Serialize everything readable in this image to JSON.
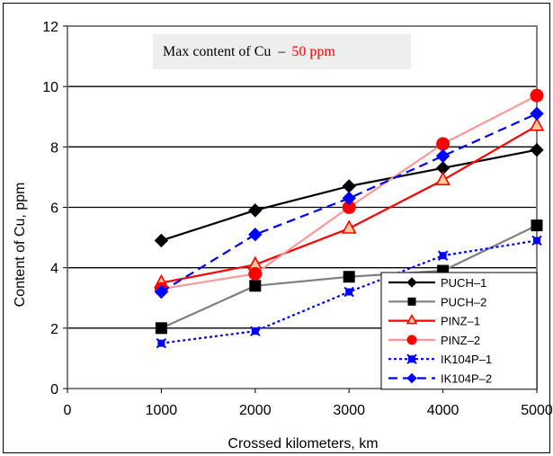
{
  "chart_data": {
    "type": "line",
    "title": "",
    "xlabel": "Crossed kilometers, km",
    "ylabel": "Content of Cu, ppm",
    "xlim": [
      0,
      5000
    ],
    "ylim": [
      0,
      12
    ],
    "xticks": [
      0,
      1000,
      2000,
      3000,
      4000,
      5000
    ],
    "yticks": [
      0,
      2,
      4,
      6,
      8,
      10,
      12
    ],
    "grid": "horizontal",
    "legend_position": "bottom-right",
    "annotation": {
      "prefix": "Max content of  Cu",
      "dash": "–",
      "value": "50 ppm",
      "prefix_color": "#000000",
      "value_color": "#ff0000"
    },
    "series": [
      {
        "name": "PUCH–1",
        "x": [
          1000,
          2000,
          3000,
          4000,
          5000
        ],
        "values": [
          4.9,
          5.9,
          6.7,
          7.3,
          7.9
        ],
        "color": "#000000",
        "marker": "diamond",
        "dash": "solid",
        "line_color": "#000000"
      },
      {
        "name": "PUCH–2",
        "x": [
          1000,
          2000,
          3000,
          4000,
          5000
        ],
        "values": [
          2.0,
          3.4,
          3.7,
          3.9,
          5.4
        ],
        "color": "#000000",
        "marker": "square",
        "dash": "solid",
        "line_color": "#808080"
      },
      {
        "name": "PINZ–1",
        "x": [
          1000,
          2000,
          3000,
          4000,
          5000
        ],
        "values": [
          3.5,
          4.1,
          5.3,
          6.9,
          8.7
        ],
        "color": "#ff0000",
        "marker": "triangle",
        "dash": "solid",
        "line_color": "#ff0000"
      },
      {
        "name": "PINZ–2",
        "x": [
          1000,
          2000,
          3000,
          4000,
          5000
        ],
        "values": [
          3.3,
          3.8,
          6.0,
          8.1,
          9.7
        ],
        "color": "#ff0000",
        "marker": "circle",
        "dash": "solid",
        "line_color": "#ff9999"
      },
      {
        "name": "IK104P–1",
        "x": [
          1000,
          2000,
          3000,
          4000,
          5000
        ],
        "values": [
          1.5,
          1.9,
          3.2,
          4.4,
          4.9
        ],
        "color": "#0000ff",
        "marker": "x-square",
        "dash": "dotted",
        "line_color": "#0000ff"
      },
      {
        "name": "IK104P–2",
        "x": [
          1000,
          2000,
          3000,
          4000,
          5000
        ],
        "values": [
          3.2,
          5.1,
          6.3,
          7.7,
          9.1
        ],
        "color": "#0000ff",
        "marker": "diamond",
        "dash": "dashed",
        "line_color": "#0000ff"
      }
    ]
  }
}
